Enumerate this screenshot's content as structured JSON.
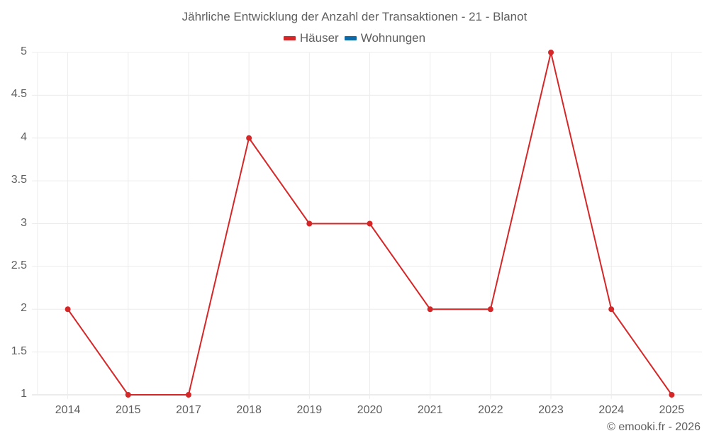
{
  "chart_data": {
    "type": "line",
    "title": "Jährliche Entwicklung der Anzahl der Transaktionen - 21 - Blanot",
    "xlabel": "",
    "ylabel": "",
    "categories": [
      "2014",
      "2015",
      "2017",
      "2018",
      "2019",
      "2020",
      "2021",
      "2022",
      "2023",
      "2024",
      "2025"
    ],
    "series": [
      {
        "name": "Häuser",
        "color": "#d62728",
        "values": [
          2,
          1,
          1,
          4,
          3,
          3,
          2,
          2,
          5,
          2,
          1
        ]
      },
      {
        "name": "Wohnungen",
        "color": "#0d6aa8",
        "values": []
      }
    ],
    "ylim": [
      1,
      5
    ],
    "yticks": [
      "1",
      "1.5",
      "2",
      "2.5",
      "3",
      "3.5",
      "4",
      "4.5",
      "5"
    ],
    "grid": true,
    "legend_position": "top"
  },
  "legend": [
    {
      "label": "Häuser",
      "color": "#d62728"
    },
    {
      "label": "Wohnungen",
      "color": "#0d6aa8"
    }
  ],
  "credit": "© emooki.fr - 2026"
}
